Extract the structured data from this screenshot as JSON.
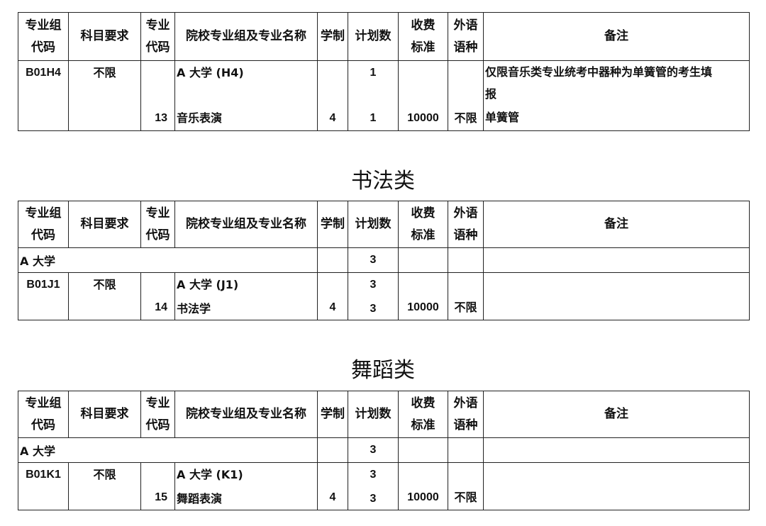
{
  "headers": [
    "专业组代码",
    "科目要求",
    "专业代码",
    "院校专业组及专业名称",
    "学制",
    "计划数",
    "收费标准",
    "外语语种",
    "备注"
  ],
  "header_lines": [
    [
      "专业组",
      "代码"
    ],
    [
      "科目要求"
    ],
    [
      "专业",
      "代码"
    ],
    [
      "院校专业组及专业名称"
    ],
    [
      "学制"
    ],
    [
      "计划数"
    ],
    [
      "收费",
      "标准"
    ],
    [
      "外语",
      "语种"
    ],
    [
      "备注"
    ]
  ],
  "sections": [
    {
      "title": "",
      "school_row": null,
      "group": {
        "group_code": "B01H4",
        "subject_req": "不限",
        "group_name": "A 大学 (H4)",
        "group_plan": "1",
        "major_code": "13",
        "major_name": "音乐表演",
        "years": "4",
        "plan": "1",
        "fee": "10000",
        "language": "不限",
        "remark_lines": [
          "仅限音乐类专业统考中器种为单簧管的考生填",
          "报",
          "单簧管"
        ]
      }
    },
    {
      "title": "书法类",
      "school_row": {
        "name": "A 大学",
        "plan": "3"
      },
      "group": {
        "group_code": "B01J1",
        "subject_req": "不限",
        "group_name": "A 大学 (J1)",
        "group_plan": "3",
        "major_code": "14",
        "major_name": "书法学",
        "years": "4",
        "plan": "3",
        "fee": "10000",
        "language": "不限",
        "remark_lines": []
      }
    },
    {
      "title": "舞蹈类",
      "school_row": {
        "name": "A 大学",
        "plan": "3"
      },
      "group": {
        "group_code": "B01K1",
        "subject_req": "不限",
        "group_name": "A 大学 (K1)",
        "group_plan": "3",
        "major_code": "15",
        "major_name": "舞蹈表演",
        "years": "4",
        "plan": "3",
        "fee": "10000",
        "language": "不限",
        "remark_lines": []
      }
    }
  ]
}
